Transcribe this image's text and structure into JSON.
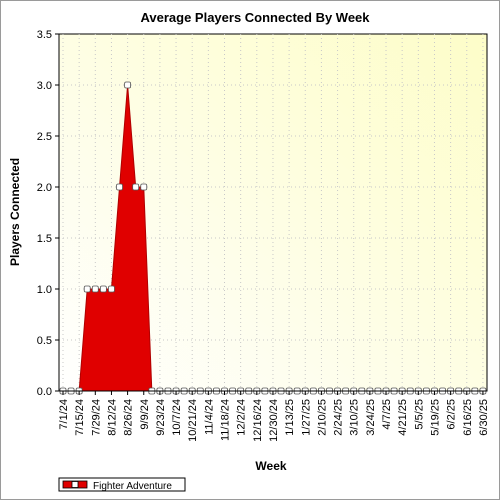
{
  "chart_data": {
    "type": "area",
    "title": "Average Players Connected By Week",
    "xlabel": "Week",
    "ylabel": "Players Connected",
    "ylim": [
      0,
      3.5
    ],
    "yticks": [
      "0.0",
      "0.5",
      "1.0",
      "1.5",
      "2.0",
      "2.5",
      "3.0",
      "3.5"
    ],
    "grid": true,
    "legend_position": "bottom-left",
    "x_tick_labels": [
      "7/1/24",
      "7/15/24",
      "7/29/24",
      "8/12/24",
      "8/26/24",
      "9/9/24",
      "9/23/24",
      "10/7/24",
      "10/21/24",
      "11/4/24",
      "11/18/24",
      "12/2/24",
      "12/16/24",
      "12/30/24",
      "1/13/25",
      "1/27/25",
      "2/10/25",
      "2/24/25",
      "3/10/25",
      "3/24/25",
      "4/7/25",
      "4/21/25",
      "5/5/25",
      "5/19/25",
      "6/2/25",
      "6/16/25",
      "6/30/25"
    ],
    "categories": [
      "7/1/24",
      "7/8/24",
      "7/15/24",
      "7/22/24",
      "7/29/24",
      "8/5/24",
      "8/12/24",
      "8/19/24",
      "8/26/24",
      "9/2/24",
      "9/9/24",
      "9/16/24",
      "9/23/24",
      "9/30/24",
      "10/7/24",
      "10/14/24",
      "10/21/24",
      "10/28/24",
      "11/4/24",
      "11/11/24",
      "11/18/24",
      "11/25/24",
      "12/2/24",
      "12/9/24",
      "12/16/24",
      "12/23/24",
      "12/30/24",
      "1/6/25",
      "1/13/25",
      "1/20/25",
      "1/27/25",
      "2/3/25",
      "2/10/25",
      "2/17/25",
      "2/24/25",
      "3/3/25",
      "3/10/25",
      "3/17/25",
      "3/24/25",
      "3/31/25",
      "4/7/25",
      "4/14/25",
      "4/21/25",
      "4/28/25",
      "5/5/25",
      "5/12/25",
      "5/19/25",
      "5/26/25",
      "6/2/25",
      "6/9/25",
      "6/16/25",
      "6/23/25",
      "6/30/25"
    ],
    "series": [
      {
        "name": "Fighter Adventure",
        "color": "#e00000",
        "values": [
          0,
          0,
          0,
          1,
          1,
          1,
          1,
          2,
          3,
          2,
          2,
          0,
          0,
          0,
          0,
          0,
          0,
          0,
          0,
          0,
          0,
          0,
          0,
          0,
          0,
          0,
          0,
          0,
          0,
          0,
          0,
          0,
          0,
          0,
          0,
          0,
          0,
          0,
          0,
          0,
          0,
          0,
          0,
          0,
          0,
          0,
          0,
          0,
          0,
          0,
          0,
          0,
          0
        ]
      }
    ]
  }
}
